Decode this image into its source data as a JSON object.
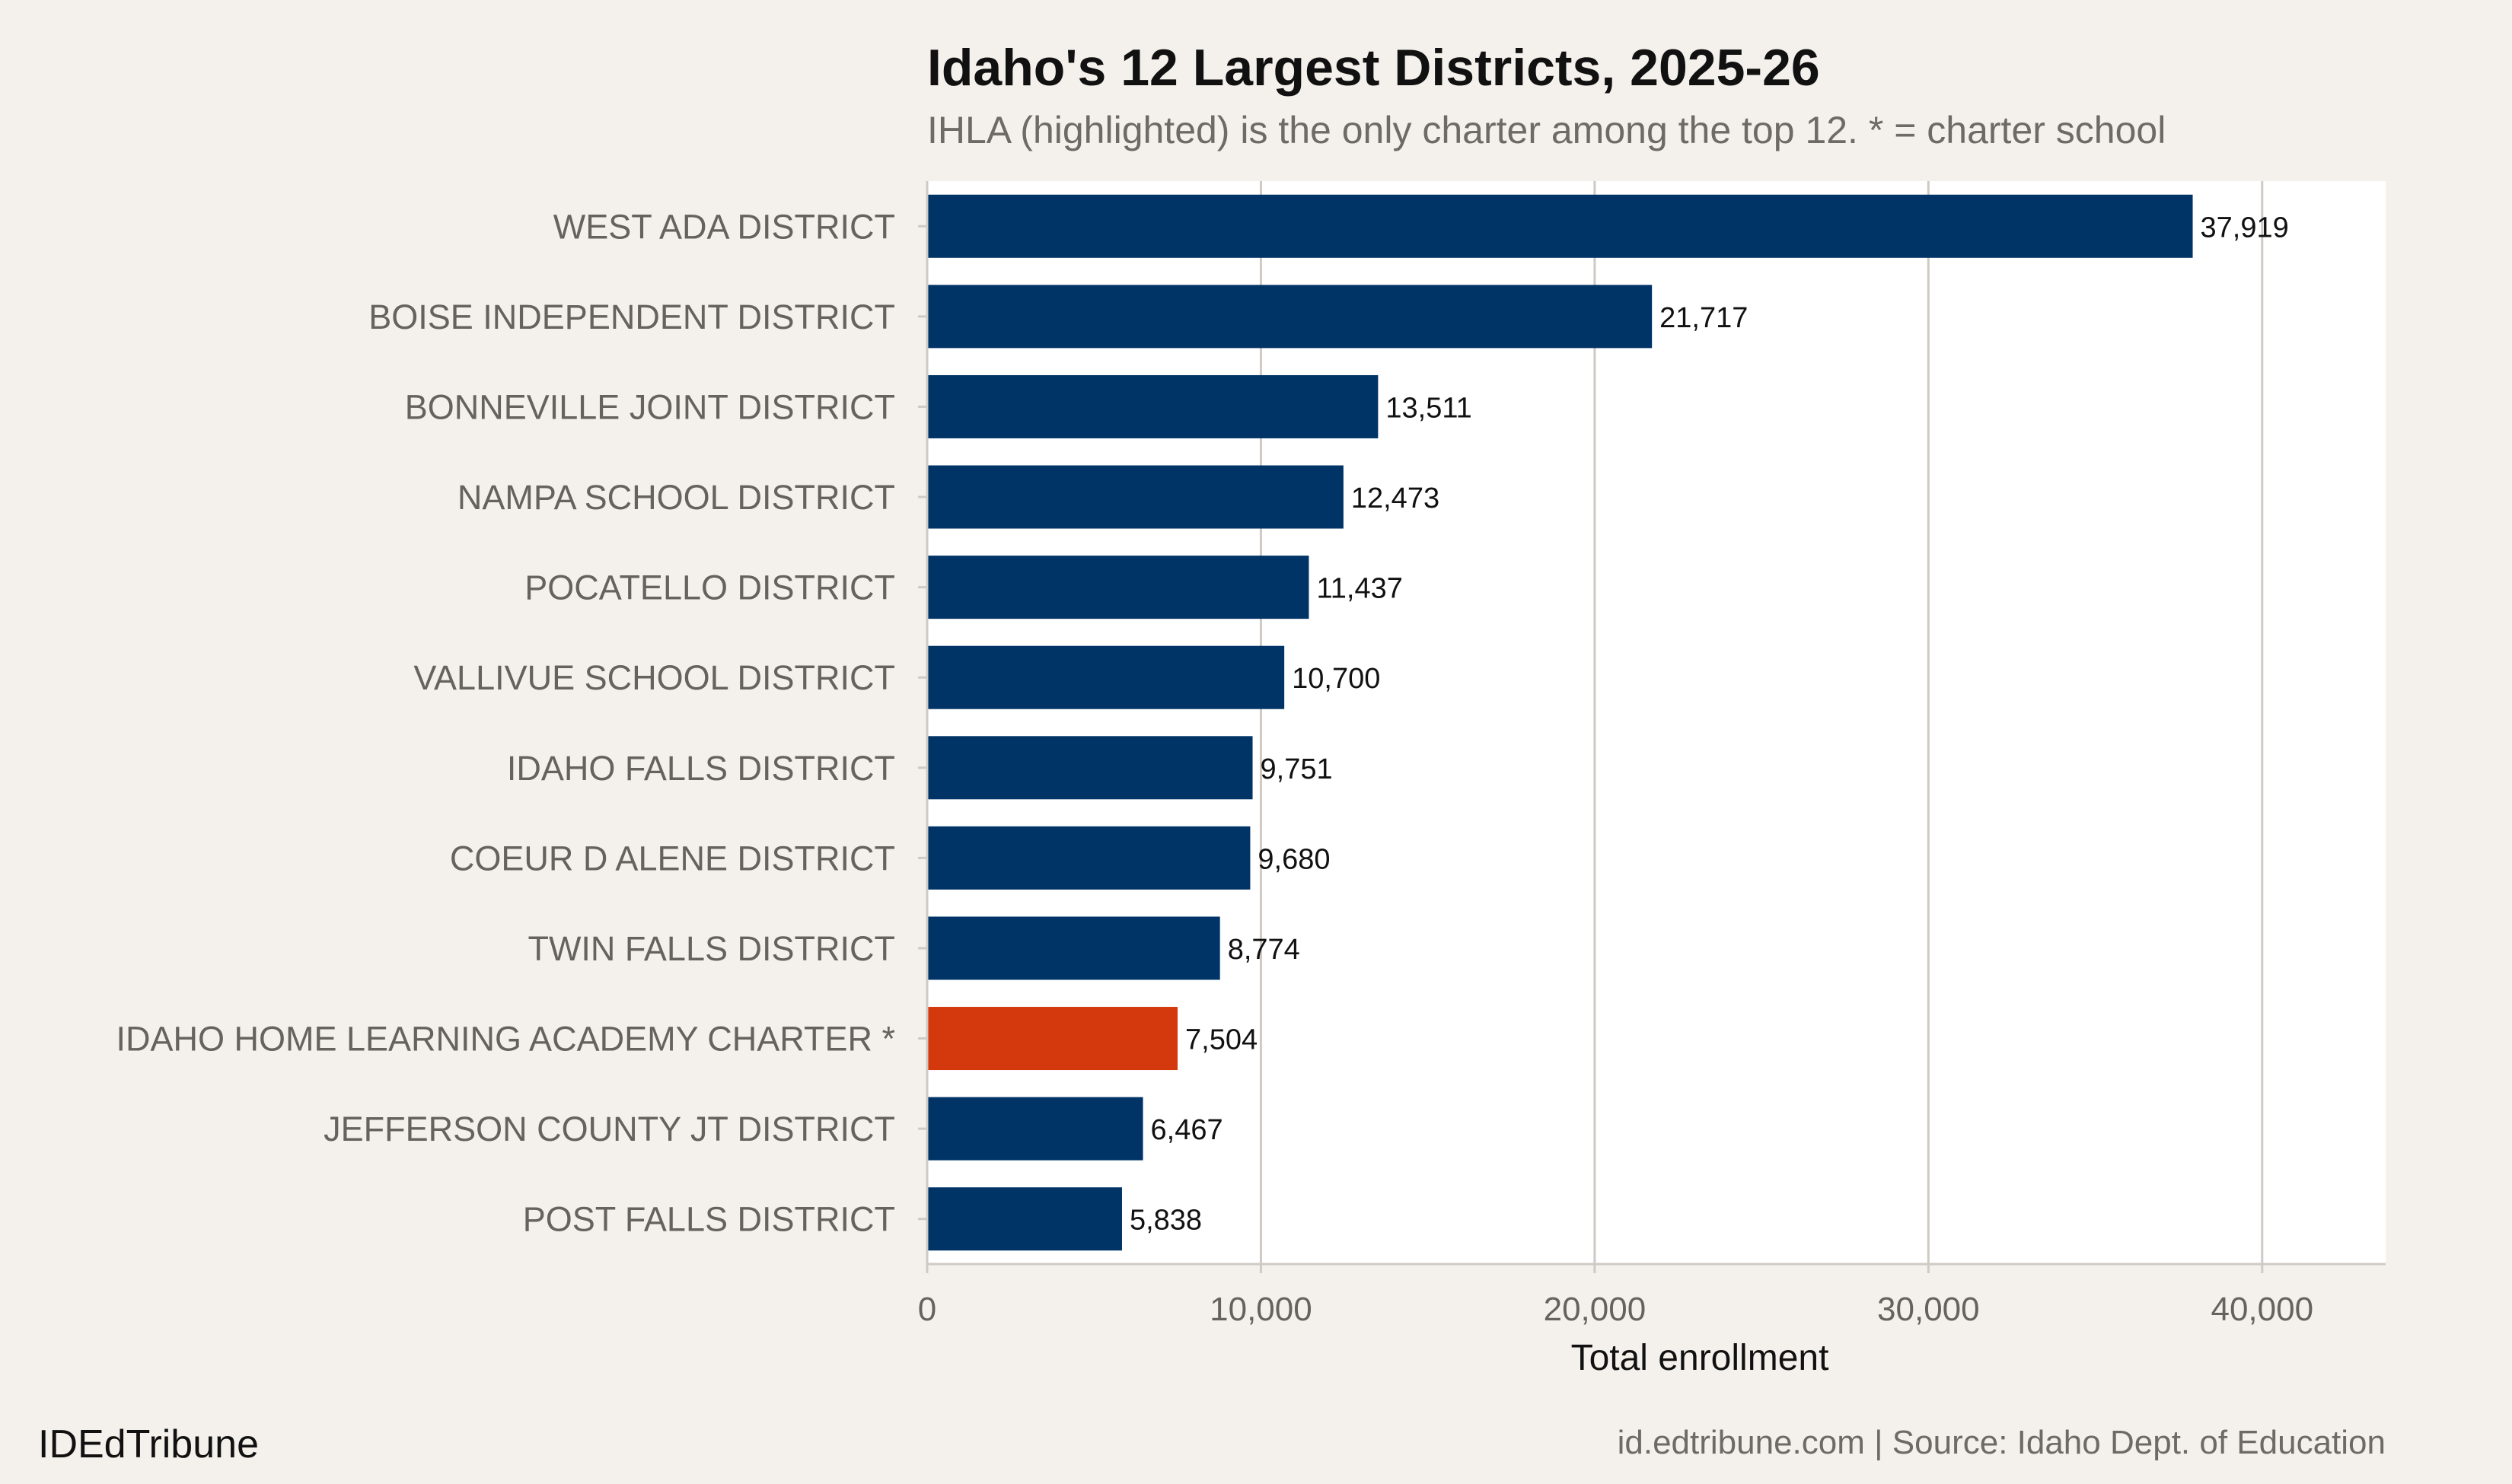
{
  "chart_data": {
    "type": "bar",
    "orientation": "horizontal",
    "title": "Idaho's 12 Largest Districts, 2025-26",
    "subtitle": "IHLA (highlighted) is the only charter among the top 12. * = charter school",
    "xlabel": "Total enrollment",
    "ylabel": "",
    "xlim": [
      0,
      43700
    ],
    "xticks": [
      0,
      10000,
      20000,
      30000,
      40000
    ],
    "xtick_labels": [
      "0",
      "10,000",
      "20,000",
      "30,000",
      "40,000"
    ],
    "grid": "vertical",
    "categories": [
      "WEST ADA DISTRICT",
      "BOISE INDEPENDENT DISTRICT",
      "BONNEVILLE JOINT DISTRICT",
      "NAMPA SCHOOL DISTRICT",
      "POCATELLO DISTRICT",
      "VALLIVUE SCHOOL DISTRICT",
      "IDAHO FALLS DISTRICT",
      "COEUR D ALENE DISTRICT",
      "TWIN FALLS DISTRICT",
      "IDAHO HOME LEARNING ACADEMY CHARTER *",
      "JEFFERSON COUNTY JT DISTRICT",
      "POST FALLS DISTRICT"
    ],
    "values": [
      37919,
      21717,
      13511,
      12473,
      11437,
      10700,
      9751,
      9680,
      8774,
      7504,
      6467,
      5838
    ],
    "value_labels": [
      "37,919",
      "21,717",
      "13,511",
      "12,473",
      "11,437",
      "10,700",
      "9,751",
      "9,680",
      "8,774",
      "7,504",
      "6,467",
      "5,838"
    ],
    "highlighted": [
      false,
      false,
      false,
      false,
      false,
      false,
      false,
      false,
      false,
      true,
      false,
      false
    ],
    "colors": {
      "default": "#003366",
      "highlight": "#d4380d",
      "background": "#f4f1ec",
      "panel": "#ffffff",
      "grid": "#cfcac3"
    }
  },
  "footer": {
    "brand": "IDEdTribune",
    "source": "id.edtribune.com | Source: Idaho Dept. of Education"
  }
}
